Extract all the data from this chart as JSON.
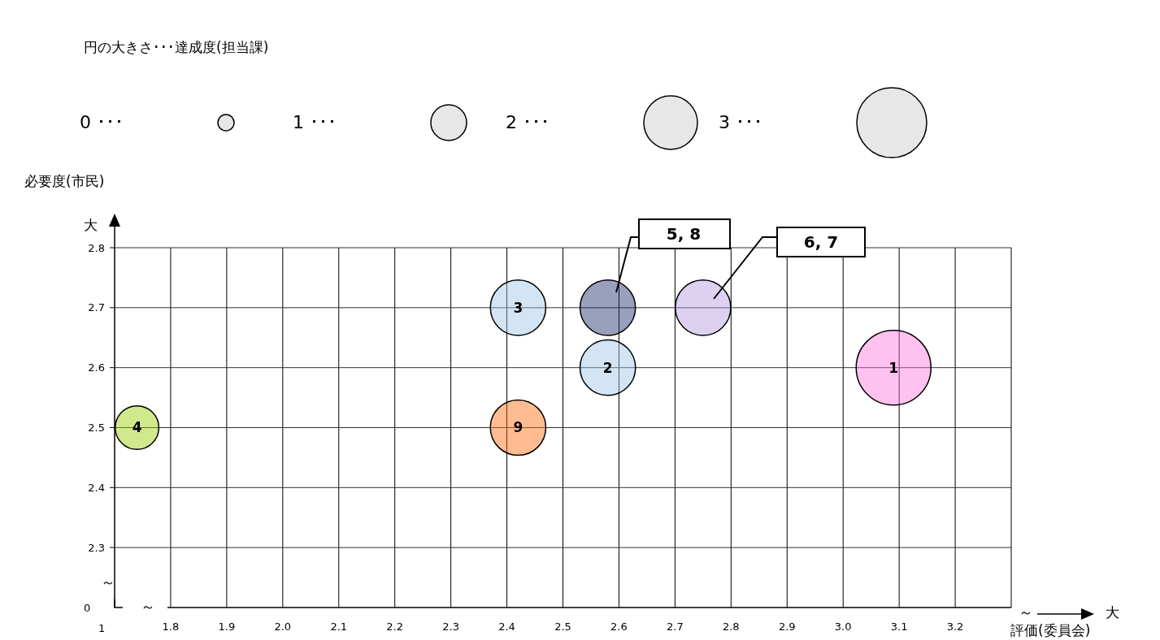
{
  "chart_data": {
    "type": "bubble",
    "title": "円の大きさ･･･達成度(担当課)",
    "ylabel": "必要度(市民)",
    "xlabel": "評価(委員会)",
    "x": [
      3.09,
      2.58,
      2.42,
      1.74,
      2.58,
      2.75,
      2.42
    ],
    "values": [
      2.6,
      2.6,
      2.7,
      2.5,
      2.7,
      2.7,
      2.5
    ],
    "sizes": [
      1,
      0.55,
      0.55,
      0.34,
      0.55,
      0.55,
      0.55
    ],
    "colors": [
      "#ff77dd",
      "#9dc3e6",
      "#9dc3e6",
      "#99cc00",
      "#1f2d6b",
      "#b499e0",
      "#ff6a10"
    ],
    "xlim": [
      1.7,
      3.3
    ],
    "xticks": [
      1.8,
      1.9,
      {
        "value": 2.0,
        "label": "2.0"
      },
      2.1,
      2.2,
      2.3,
      2.4,
      2.5,
      2.6,
      2.7,
      2.8,
      2.9,
      {
        "value": 3.0,
        "label": "3.0"
      },
      3.1,
      3.2
    ],
    "ylim": [
      2.2,
      2.8
    ],
    "yticks": [
      2.3,
      2.4,
      2.5,
      2.6,
      2.7,
      2.8
    ],
    "grid": true,
    "annotations": [
      {
        "text": "1",
        "x": 3.09,
        "y": 2.6
      },
      {
        "text": "2",
        "x": 2.58,
        "y": 2.6
      },
      {
        "text": "3",
        "x": 2.42,
        "y": 2.7
      },
      {
        "text": "4",
        "x": 1.74,
        "y": 2.5
      },
      {
        "text": "9",
        "x": 2.42,
        "y": 2.5
      },
      "0 ･･･",
      "1 ･･･",
      "2 ･･･",
      "3 ･･･",
      "大",
      "大",
      "～",
      "～",
      "～",
      "1",
      "0",
      "5, 8",
      "6, 7"
    ]
  }
}
